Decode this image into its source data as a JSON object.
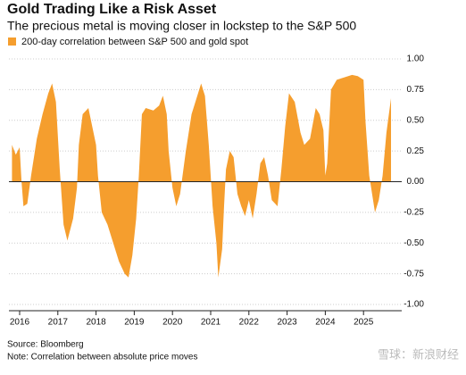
{
  "chart_data": {
    "type": "area",
    "title": "Gold Trading Like a Risk Asset",
    "subtitle": "The precious metal is moving closer in lockstep to the S&P 500",
    "series": [
      {
        "name": "200-day correlation between S&P 500 and gold spot",
        "color": "#f59e2e",
        "x": [
          2015.8,
          2015.9,
          2016.0,
          2016.05,
          2016.1,
          2016.2,
          2016.3,
          2016.45,
          2016.6,
          2016.75,
          2016.85,
          2016.95,
          2017.05,
          2017.15,
          2017.25,
          2017.4,
          2017.5,
          2017.55,
          2017.65,
          2017.8,
          2017.9,
          2018.0,
          2018.05,
          2018.15,
          2018.3,
          2018.45,
          2018.6,
          2018.75,
          2018.85,
          2018.95,
          2019.05,
          2019.12,
          2019.2,
          2019.3,
          2019.5,
          2019.65,
          2019.75,
          2019.85,
          2019.9,
          2020.0,
          2020.1,
          2020.2,
          2020.35,
          2020.5,
          2020.65,
          2020.75,
          2020.85,
          2020.95,
          2021.05,
          2021.15,
          2021.2,
          2021.3,
          2021.35,
          2021.4,
          2021.5,
          2021.6,
          2021.7,
          2021.8,
          2021.9,
          2022.0,
          2022.1,
          2022.2,
          2022.3,
          2022.4,
          2022.5,
          2022.6,
          2022.75,
          2022.85,
          2022.95,
          2023.05,
          2023.2,
          2023.35,
          2023.45,
          2023.6,
          2023.75,
          2023.85,
          2023.95,
          2024.0,
          2024.05,
          2024.15,
          2024.3,
          2024.5,
          2024.7,
          2024.85,
          2025.0,
          2025.05,
          2025.15,
          2025.3,
          2025.4,
          2025.5,
          2025.6,
          2025.72
        ],
        "values": [
          0.3,
          0.22,
          0.28,
          0.0,
          -0.2,
          -0.18,
          0.05,
          0.35,
          0.55,
          0.72,
          0.8,
          0.65,
          0.1,
          -0.35,
          -0.48,
          -0.3,
          -0.05,
          0.3,
          0.55,
          0.6,
          0.45,
          0.3,
          0.05,
          -0.25,
          -0.35,
          -0.5,
          -0.65,
          -0.75,
          -0.78,
          -0.6,
          -0.3,
          0.05,
          0.55,
          0.6,
          0.58,
          0.62,
          0.7,
          0.55,
          0.25,
          -0.05,
          -0.2,
          -0.1,
          0.25,
          0.55,
          0.7,
          0.8,
          0.7,
          0.3,
          -0.2,
          -0.5,
          -0.78,
          -0.55,
          -0.2,
          0.1,
          0.25,
          0.2,
          -0.1,
          -0.2,
          -0.28,
          -0.15,
          -0.3,
          -0.1,
          0.15,
          0.2,
          0.05,
          -0.15,
          -0.2,
          0.1,
          0.45,
          0.72,
          0.65,
          0.4,
          0.3,
          0.35,
          0.6,
          0.55,
          0.42,
          0.05,
          0.15,
          0.75,
          0.83,
          0.85,
          0.87,
          0.86,
          0.83,
          0.5,
          0.05,
          -0.25,
          -0.15,
          0.05,
          0.4,
          0.68
        ]
      }
    ],
    "xlim": [
      2015.72,
      2026.0
    ],
    "xticks": [
      2016,
      2017,
      2018,
      2019,
      2020,
      2021,
      2022,
      2023,
      2024,
      2025
    ],
    "ylim": [
      -1,
      1
    ],
    "yticks": [
      {
        "value": 1,
        "label": "1.00"
      },
      0.75,
      {
        "value": 0.5,
        "label": "0.50"
      },
      0.25,
      {
        "value": 0,
        "label": "0.00"
      },
      -0.25,
      {
        "value": -0.5,
        "label": "-0.50"
      },
      -0.75,
      {
        "value": -1,
        "label": "-1.00"
      }
    ],
    "grid": true,
    "source": "Source: Bloomberg",
    "note": "Note: Correlation between absolute price moves",
    "watermark": "雪球：新浪财经"
  }
}
